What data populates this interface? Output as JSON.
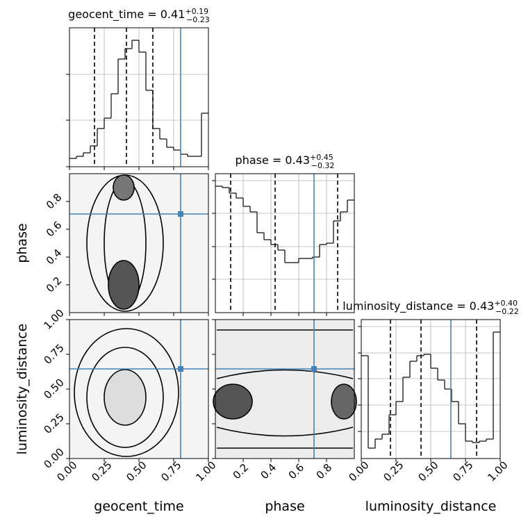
{
  "chart_data": {
    "type": "corner",
    "truth_color": "#4682b4",
    "hist_color": "#000000",
    "grid": true,
    "parameters": [
      {
        "label": "geocent_time",
        "title": "geocent_time = 0.41",
        "title_sup": "+0.19",
        "title_sub": "−0.23",
        "lim": [
          0,
          1
        ],
        "ticks": [
          {
            "value": 0,
            "label": "0.00"
          },
          {
            "value": 0.25,
            "label": "0.25"
          },
          {
            "value": 0.5,
            "label": "0.50"
          },
          {
            "value": 0.75,
            "label": "0.75"
          },
          {
            "value": 1,
            "label": "1.00"
          }
        ],
        "truth": 0.8,
        "quantiles": [
          0.18,
          0.41,
          0.6
        ],
        "bins": [
          0,
          0.05,
          0.1,
          0.15,
          0.2,
          0.25,
          0.3,
          0.35,
          0.4,
          0.45,
          0.5,
          0.55,
          0.6,
          0.65,
          0.7,
          0.75,
          0.8,
          0.85,
          0.9,
          0.95,
          1
        ],
        "counts": [
          12,
          15,
          20,
          30,
          55,
          70,
          105,
          155,
          170,
          182,
          165,
          110,
          55,
          40,
          28,
          24,
          18,
          15,
          15,
          77
        ],
        "hist_ylim": [
          0,
          200
        ],
        "hist_yticks": [
          0,
          67,
          133
        ]
      },
      {
        "label": "phase",
        "title": "phase = 0.43",
        "title_sup": "+0.45",
        "title_sub": "−0.32",
        "lim": [
          0,
          1
        ],
        "ticks": [
          0.2,
          0.4,
          0.6,
          0.8
        ],
        "truth": 0.71,
        "quantiles": [
          0.11,
          0.43,
          0.88
        ],
        "bins": [
          0,
          0.05,
          0.1,
          0.15,
          0.2,
          0.25,
          0.3,
          0.35,
          0.4,
          0.45,
          0.5,
          0.55,
          0.6,
          0.65,
          0.7,
          0.75,
          0.8,
          0.85,
          0.9,
          0.95,
          1
        ],
        "counts": [
          182,
          180,
          172,
          165,
          153,
          145,
          115,
          105,
          98,
          90,
          72,
          72,
          78,
          78,
          80,
          98,
          100,
          132,
          145,
          162
        ],
        "hist_ylim": [
          0,
          200
        ],
        "hist_yticks": [
          48,
          95,
          143,
          190
        ]
      },
      {
        "label": "luminosity_distance",
        "title": "luminosity_distance = 0.43",
        "title_sup": "+0.40",
        "title_sub": "−0.22",
        "lim": [
          0,
          1
        ],
        "ticks": [
          {
            "value": 0,
            "label": "0.00"
          },
          {
            "value": 0.25,
            "label": "0.25"
          },
          {
            "value": 0.5,
            "label": "0.50"
          },
          {
            "value": 0.75,
            "label": "0.75"
          },
          {
            "value": 1,
            "label": "1.00"
          }
        ],
        "truth": 0.645,
        "quantiles": [
          0.21,
          0.43,
          0.83
        ],
        "bins": [
          0,
          0.05,
          0.1,
          0.15,
          0.2,
          0.25,
          0.3,
          0.35,
          0.4,
          0.45,
          0.5,
          0.55,
          0.6,
          0.65,
          0.7,
          0.75,
          0.8,
          0.85,
          0.9,
          0.95,
          1
        ],
        "counts": [
          148,
          15,
          28,
          35,
          63,
          82,
          117,
          140,
          148,
          150,
          130,
          113,
          100,
          82,
          50,
          25,
          23,
          25,
          28,
          182
        ],
        "hist_ylim": [
          0,
          200
        ],
        "hist_yticks": [
          39,
          77,
          115,
          152,
          190
        ]
      }
    ]
  }
}
